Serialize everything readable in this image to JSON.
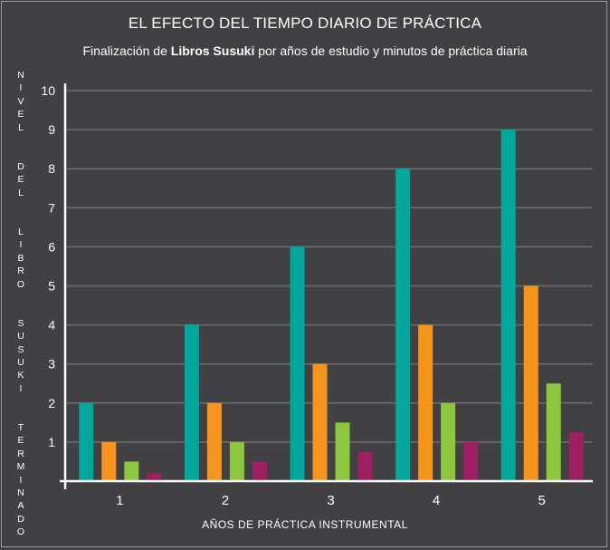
{
  "chart_data": {
    "type": "bar",
    "title": "EL EFECTO DEL TIEMPO DIARIO DE PRÁCTICA",
    "subtitle": {
      "prefix": "Finalización de ",
      "bold": "Libros Susuki",
      "suffix": " por años de estudio y minutos de práctica diaria"
    },
    "xlabel": "AÑOS DE PRÁCTICA INSTRUMENTAL",
    "ylabel": "NIVEL DEL LIBRO SUSUKI TERMINADO",
    "categories": [
      "1",
      "2",
      "3",
      "4",
      "5"
    ],
    "ylim": [
      0,
      10
    ],
    "yticks": [
      "1",
      "2",
      "3",
      "4",
      "5",
      "6",
      "7",
      "8",
      "9",
      "10"
    ],
    "grid": true,
    "series": [
      {
        "color": "#00A79D",
        "values": [
          2,
          4,
          6,
          8,
          9
        ]
      },
      {
        "color": "#F7941D",
        "values": [
          1,
          2,
          3,
          4,
          5
        ]
      },
      {
        "color": "#8DC63F",
        "values": [
          0.5,
          1,
          1.5,
          2,
          2.5
        ]
      },
      {
        "color": "#9E1F63",
        "values": [
          0.2,
          0.5,
          0.75,
          1,
          1.25
        ]
      }
    ]
  }
}
